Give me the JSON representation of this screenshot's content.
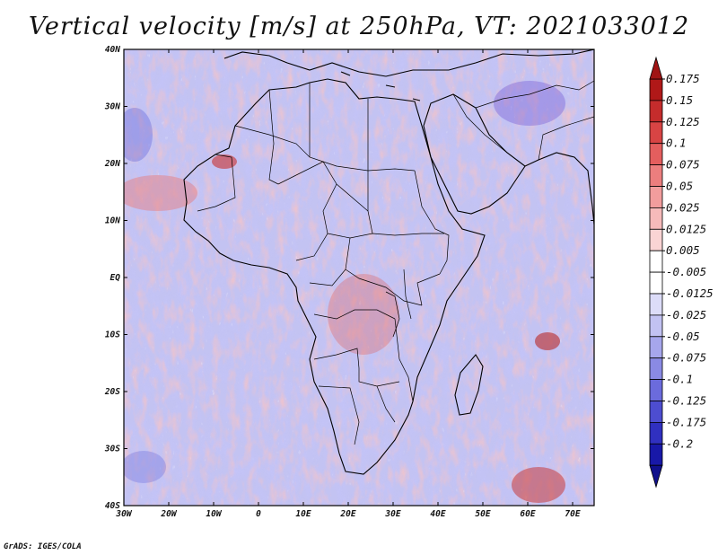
{
  "title": "Vertical velocity [m/s] at 250hPa, VT: 2021033012",
  "footer": "GrADS: IGES/COLA",
  "lat_labels": [
    "40N",
    "30N",
    "20N",
    "10N",
    "EQ",
    "10S",
    "20S",
    "30S",
    "40S"
  ],
  "lon_labels": [
    "30W",
    "20W",
    "10W",
    "0",
    "10E",
    "20E",
    "30E",
    "40E",
    "50E",
    "60E",
    "70E"
  ],
  "colorbar": {
    "labels": [
      "0.175",
      "0.15",
      "0.125",
      "0.1",
      "0.075",
      "0.05",
      "0.025",
      "0.0125",
      "0.005",
      "-0.005",
      "-0.0125",
      "-0.025",
      "-0.05",
      "-0.075",
      "-0.1",
      "-0.125",
      "-0.175",
      "-0.2"
    ],
    "colors": [
      "#b01818",
      "#c52c2c",
      "#d84444",
      "#e45e5e",
      "#ec7e7e",
      "#f29d9d",
      "#f6baba",
      "#fad4d4",
      "#ffffff",
      "#ffffff",
      "#dcdcf8",
      "#c2c2f2",
      "#a6a6ec",
      "#8a8ae4",
      "#6b6bdc",
      "#4d4dd0",
      "#3030c0",
      "#1818a8"
    ]
  },
  "colors": {
    "land_outline": "#000000",
    "ocean_base": "#c3c3f2",
    "positive": "#f29898",
    "negative": "#8686e2"
  }
}
